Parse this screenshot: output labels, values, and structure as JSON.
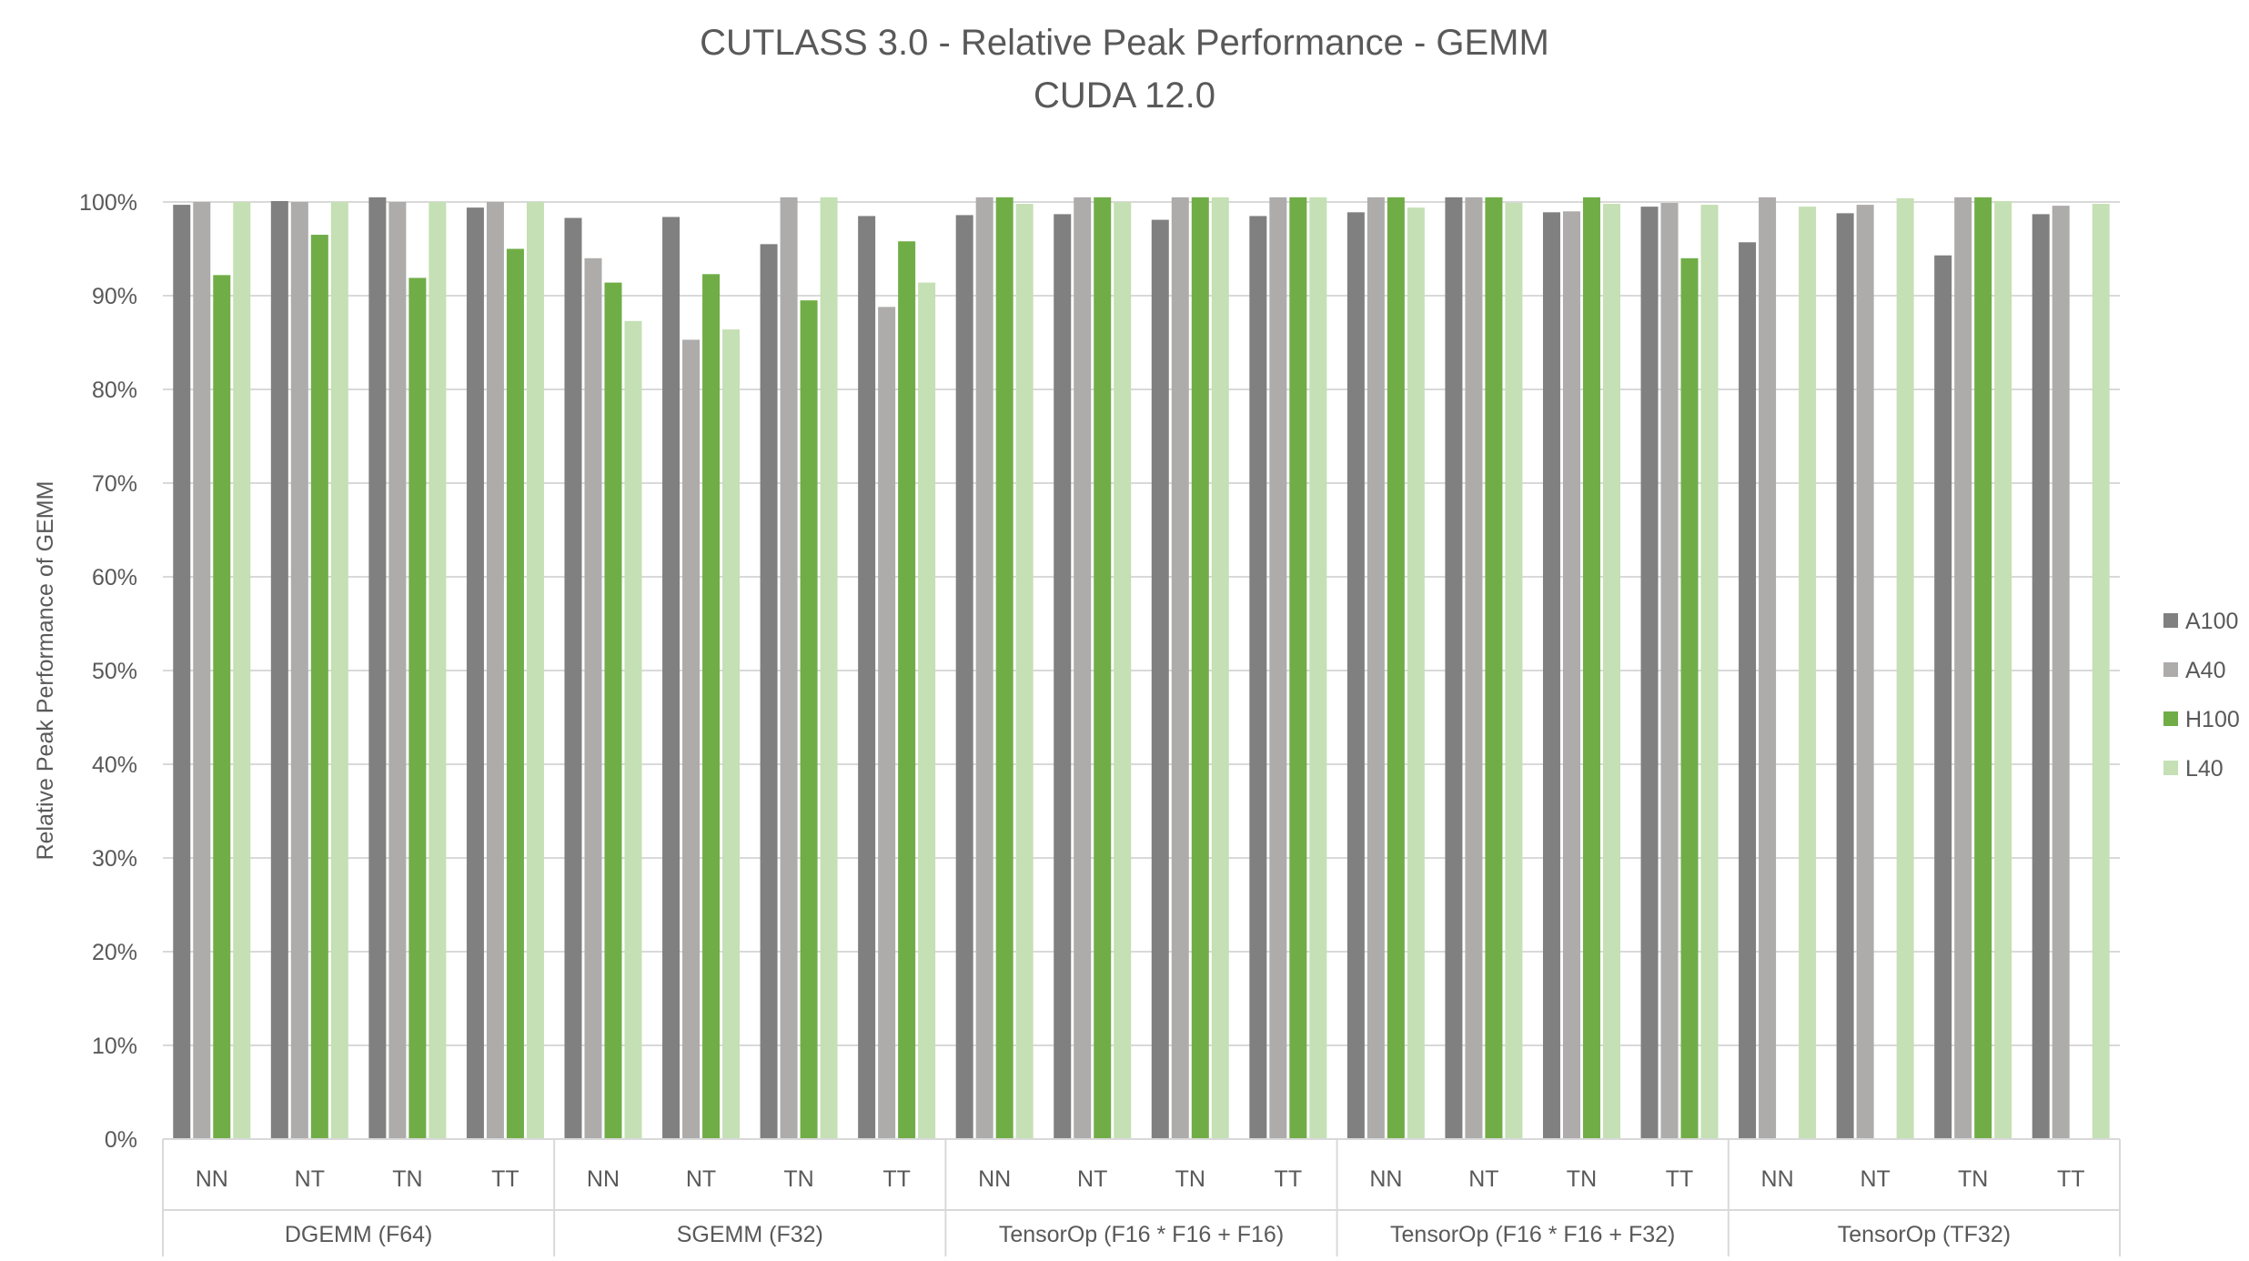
{
  "chart_data": {
    "type": "bar",
    "title": "CUTLASS 3.0 - Relative Peak Performance - GEMM",
    "subtitle": "CUDA 12.0",
    "ylabel": "Relative Peak Performance of GEMM",
    "xlabel": "",
    "ylim": [
      0,
      100
    ],
    "yticks": [
      "0%",
      "10%",
      "20%",
      "30%",
      "40%",
      "50%",
      "60%",
      "70%",
      "80%",
      "90%",
      "100%"
    ],
    "grid": true,
    "legend_position": "right",
    "groups": [
      {
        "label": "DGEMM (F64)",
        "categories": [
          "NN",
          "NT",
          "TN",
          "TT"
        ]
      },
      {
        "label": "SGEMM (F32)",
        "categories": [
          "NN",
          "NT",
          "TN",
          "TT"
        ]
      },
      {
        "label": "TensorOp (F16 * F16 + F16)",
        "categories": [
          "NN",
          "NT",
          "TN",
          "TT"
        ]
      },
      {
        "label": "TensorOp (F16 * F16 + F32)",
        "categories": [
          "NN",
          "NT",
          "TN",
          "TT"
        ]
      },
      {
        "label": "TensorOp (TF32)",
        "categories": [
          "NN",
          "NT",
          "TN",
          "TT"
        ]
      }
    ],
    "series": [
      {
        "name": "A100",
        "color": "#808080",
        "values": [
          99.7,
          100.1,
          100.5,
          99.4,
          98.3,
          98.4,
          95.5,
          98.5,
          98.6,
          98.7,
          98.1,
          98.5,
          98.9,
          100.5,
          98.9,
          99.5,
          95.7,
          98.8,
          94.3,
          98.7
        ]
      },
      {
        "name": "A40",
        "color": "#AEABAB",
        "values": [
          100,
          100,
          100,
          100,
          94.0,
          85.3,
          100.5,
          88.8,
          100.5,
          100.5,
          100.5,
          100.5,
          100.5,
          100.5,
          99.0,
          99.9,
          100.5,
          99.7,
          100.5,
          99.6
        ]
      },
      {
        "name": "H100",
        "color": "#70AD47",
        "values": [
          92.2,
          96.5,
          91.9,
          95.0,
          91.4,
          92.3,
          89.5,
          95.8,
          100.5,
          100.5,
          100.5,
          100.5,
          100.5,
          100.5,
          100.5,
          94.0,
          null,
          null,
          100.5,
          null
        ]
      },
      {
        "name": "L40",
        "color": "#C5E0B4",
        "values": [
          100,
          100,
          100,
          100,
          87.3,
          86.4,
          100.5,
          91.4,
          99.8,
          100,
          100.5,
          100.5,
          99.4,
          99.9,
          99.8,
          99.7,
          99.5,
          100.4,
          100.1,
          99.8
        ]
      }
    ]
  }
}
